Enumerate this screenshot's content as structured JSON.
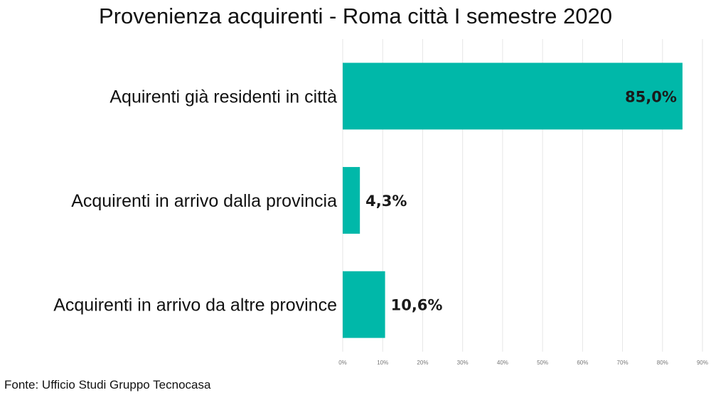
{
  "chart_data": {
    "type": "bar",
    "orientation": "horizontal",
    "title": "Provenienza acquirenti - Roma città I semestre 2020",
    "categories": [
      "Aquirenti già residenti in città",
      "Acquirenti in arrivo dalla provincia",
      "Acquirenti in arrivo da altre province"
    ],
    "values": [
      85.0,
      4.3,
      10.6
    ],
    "value_labels": [
      "85,0%",
      "4,3%",
      "10,6%"
    ],
    "xlim": [
      0,
      90
    ],
    "x_ticks": [
      "0%",
      "10%",
      "20%",
      "30%",
      "40%",
      "50%",
      "60%",
      "70%",
      "80%",
      "90%"
    ],
    "grid": true,
    "legend": "none",
    "bar_color": "#00b8a9"
  },
  "source": "Fonte: Ufficio Studi Gruppo Tecnocasa"
}
